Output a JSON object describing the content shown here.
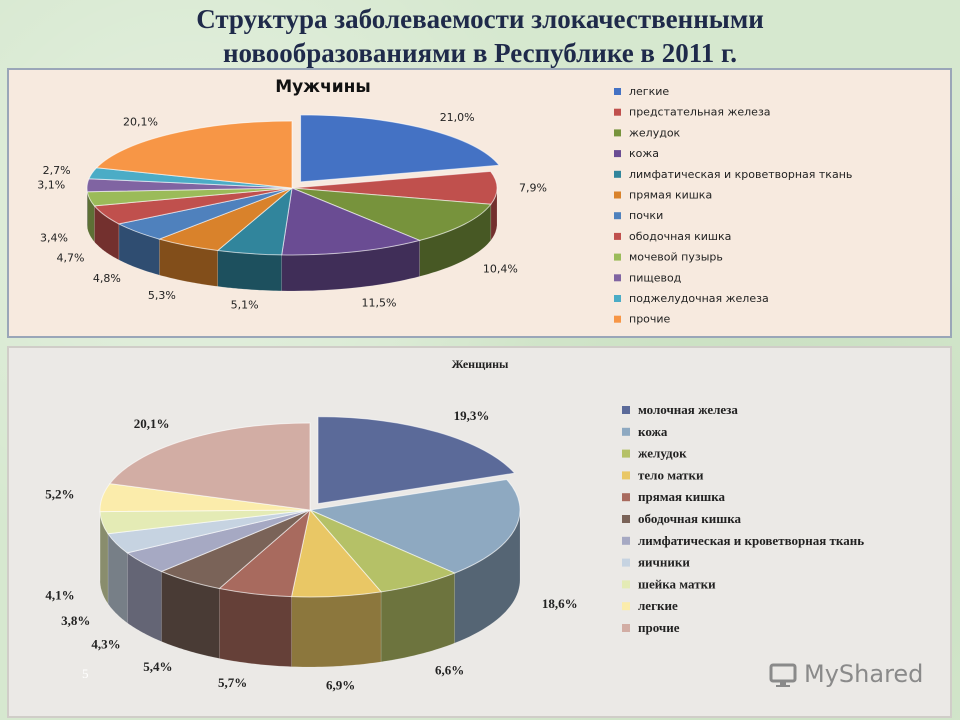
{
  "slide": {
    "title_line1": "Структура заболеваемости злокачественными",
    "title_line2": "новообразованиями в Республике в 2011 г.",
    "page_number": "5",
    "watermark": "MyShared"
  },
  "chart_data": [
    {
      "type": "pie",
      "title": "Мужчины",
      "legend_position": "right",
      "slices": [
        {
          "label": "легкие",
          "value": 21.0,
          "display": "21,0%",
          "color": "#4472c4"
        },
        {
          "label": "предстательная железа",
          "value": 7.9,
          "display": "7,9%",
          "color": "#c0504d"
        },
        {
          "label": "желудок",
          "value": 10.4,
          "display": "10,4%",
          "color": "#77933c"
        },
        {
          "label": "кожа",
          "value": 11.5,
          "display": "11,5%",
          "color": "#6a4c93"
        },
        {
          "label": "лимфатическая и кроветворная ткань",
          "value": 5.1,
          "display": "5,1%",
          "color": "#31859c"
        },
        {
          "label": "прямая кишка",
          "value": 5.3,
          "display": "5,3%",
          "color": "#d9822b"
        },
        {
          "label": "почки",
          "value": 4.8,
          "display": "4,8%",
          "color": "#4f81bd"
        },
        {
          "label": "ободочная кишка",
          "value": 4.7,
          "display": "4,7%",
          "color": "#c0504d"
        },
        {
          "label": "мочевой пузырь",
          "value": 3.4,
          "display": "3,4%",
          "color": "#9bbb59"
        },
        {
          "label": "пищевод",
          "value": 3.1,
          "display": "3,1%",
          "color": "#8064a2"
        },
        {
          "label": "поджелудочная железа",
          "value": 2.7,
          "display": "2,7%",
          "color": "#4bacc6"
        },
        {
          "label": "прочие",
          "value": 20.1,
          "display": "20,1%",
          "color": "#f79646"
        }
      ]
    },
    {
      "type": "pie",
      "title": "Женщины",
      "legend_position": "right",
      "slices": [
        {
          "label": "молочная железа",
          "value": 19.3,
          "display": "19,3%",
          "color": "#5b6a99"
        },
        {
          "label": "кожа",
          "value": 18.6,
          "display": "18,6%",
          "color": "#8ea9c1"
        },
        {
          "label": "желудок",
          "value": 6.6,
          "display": "6,6%",
          "color": "#b5c167"
        },
        {
          "label": "тело матки",
          "value": 6.9,
          "display": "6,9%",
          "color": "#e9c765"
        },
        {
          "label": "прямая кишка",
          "value": 5.7,
          "display": "5,7%",
          "color": "#a86a5e"
        },
        {
          "label": "ободочная кишка",
          "value": 5.4,
          "display": "5,4%",
          "color": "#7a6358"
        },
        {
          "label": "лимфатическая и кроветворная ткань",
          "value": 4.3,
          "display": "4,3%",
          "color": "#a6a9c3"
        },
        {
          "label": "яичники",
          "value": 3.8,
          "display": "3,8%",
          "color": "#c6d3e1"
        },
        {
          "label": "шейка матки",
          "value": 4.1,
          "display": "4,1%",
          "color": "#e4ebb5"
        },
        {
          "label": "легкие",
          "value": 5.2,
          "display": "5,2%",
          "color": "#fbecab"
        },
        {
          "label": "прочие",
          "value": 20.1,
          "display": "20,1%",
          "color": "#d2ada4"
        }
      ]
    }
  ]
}
